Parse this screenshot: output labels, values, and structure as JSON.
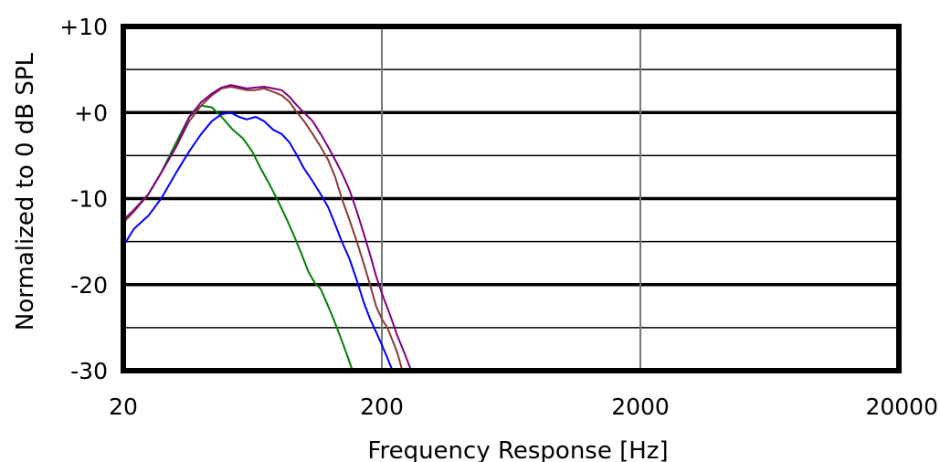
{
  "chart_data": {
    "type": "line",
    "title": "",
    "xlabel": "Frequency Response [Hz]",
    "ylabel": "Normalized to 0 dB SPL",
    "x_scale": "log",
    "xlim": [
      20,
      20000
    ],
    "ylim": [
      -30,
      10
    ],
    "x_ticks": [
      "20",
      "200",
      "2000",
      "20000"
    ],
    "y_ticks": [
      "+10",
      "+0",
      "-10",
      "-20",
      "-30"
    ],
    "grid": true,
    "legend": "none",
    "series": [
      {
        "color": "#008000",
        "points": [
          [
            20,
            -12.5
          ],
          [
            22,
            -11.3
          ],
          [
            25,
            -9.5
          ],
          [
            28,
            -7
          ],
          [
            32,
            -3.5
          ],
          [
            36,
            -0.5
          ],
          [
            40,
            0.8
          ],
          [
            44,
            0.6
          ],
          [
            48,
            -0.5
          ],
          [
            53,
            -2
          ],
          [
            58,
            -3
          ],
          [
            63,
            -4.5
          ],
          [
            68,
            -6.5
          ],
          [
            74,
            -8.5
          ],
          [
            80,
            -10.5
          ],
          [
            86,
            -12.5
          ],
          [
            92,
            -14.5
          ],
          [
            98,
            -16.5
          ],
          [
            104,
            -18.5
          ],
          [
            110,
            -19.8
          ],
          [
            116,
            -20.5
          ],
          [
            122,
            -22
          ],
          [
            130,
            -24
          ],
          [
            138,
            -26
          ],
          [
            146,
            -28
          ],
          [
            154,
            -30
          ]
        ]
      },
      {
        "color": "#0000ff",
        "points": [
          [
            20,
            -15.5
          ],
          [
            22,
            -13.5
          ],
          [
            25,
            -12
          ],
          [
            28,
            -10
          ],
          [
            32,
            -7
          ],
          [
            36,
            -4.5
          ],
          [
            40,
            -2.5
          ],
          [
            44,
            -1
          ],
          [
            48,
            -0.2
          ],
          [
            52,
            0
          ],
          [
            56,
            -0.5
          ],
          [
            60,
            -0.8
          ],
          [
            65,
            -0.5
          ],
          [
            70,
            -1
          ],
          [
            76,
            -2
          ],
          [
            82,
            -2.5
          ],
          [
            88,
            -3.5
          ],
          [
            94,
            -5
          ],
          [
            100,
            -6.5
          ],
          [
            108,
            -8
          ],
          [
            116,
            -9.5
          ],
          [
            124,
            -11
          ],
          [
            132,
            -13
          ],
          [
            140,
            -15
          ],
          [
            150,
            -17
          ],
          [
            160,
            -19.5
          ],
          [
            170,
            -22
          ],
          [
            180,
            -24
          ],
          [
            190,
            -25.5
          ],
          [
            200,
            -27
          ],
          [
            210,
            -28.5
          ],
          [
            220,
            -30
          ]
        ]
      },
      {
        "color": "#8b3a3a",
        "points": [
          [
            20,
            -12.8
          ],
          [
            22,
            -11.5
          ],
          [
            25,
            -9.5
          ],
          [
            28,
            -7
          ],
          [
            32,
            -4
          ],
          [
            36,
            -1
          ],
          [
            40,
            0.8
          ],
          [
            44,
            2
          ],
          [
            48,
            2.8
          ],
          [
            52,
            3
          ],
          [
            56,
            2.8
          ],
          [
            60,
            2.6
          ],
          [
            65,
            2.6
          ],
          [
            70,
            2.8
          ],
          [
            76,
            2.4
          ],
          [
            82,
            2
          ],
          [
            88,
            1.2
          ],
          [
            94,
            0
          ],
          [
            100,
            -1
          ],
          [
            108,
            -2.5
          ],
          [
            116,
            -4
          ],
          [
            124,
            -5.5
          ],
          [
            132,
            -7.5
          ],
          [
            140,
            -10
          ],
          [
            150,
            -12.5
          ],
          [
            160,
            -15
          ],
          [
            170,
            -17.5
          ],
          [
            180,
            -20
          ],
          [
            190,
            -22.5
          ],
          [
            200,
            -24
          ],
          [
            210,
            -25
          ],
          [
            220,
            -26.5
          ],
          [
            230,
            -28
          ],
          [
            240,
            -30
          ]
        ]
      },
      {
        "color": "#800080",
        "points": [
          [
            20,
            -12.5
          ],
          [
            22,
            -11.3
          ],
          [
            25,
            -9.5
          ],
          [
            28,
            -7
          ],
          [
            32,
            -4
          ],
          [
            36,
            -0.5
          ],
          [
            40,
            1.2
          ],
          [
            44,
            2.2
          ],
          [
            48,
            2.9
          ],
          [
            52,
            3.2
          ],
          [
            56,
            3
          ],
          [
            60,
            2.8
          ],
          [
            65,
            2.9
          ],
          [
            70,
            3
          ],
          [
            76,
            2.8
          ],
          [
            82,
            2.6
          ],
          [
            88,
            1.8
          ],
          [
            94,
            0.8
          ],
          [
            100,
            0
          ],
          [
            108,
            -1
          ],
          [
            116,
            -2.5
          ],
          [
            124,
            -4
          ],
          [
            132,
            -5.5
          ],
          [
            140,
            -7
          ],
          [
            150,
            -9
          ],
          [
            160,
            -11.5
          ],
          [
            170,
            -14
          ],
          [
            180,
            -16.5
          ],
          [
            190,
            -19
          ],
          [
            200,
            -21
          ],
          [
            215,
            -23.5
          ],
          [
            230,
            -26
          ],
          [
            245,
            -28
          ],
          [
            260,
            -30
          ]
        ]
      }
    ]
  }
}
